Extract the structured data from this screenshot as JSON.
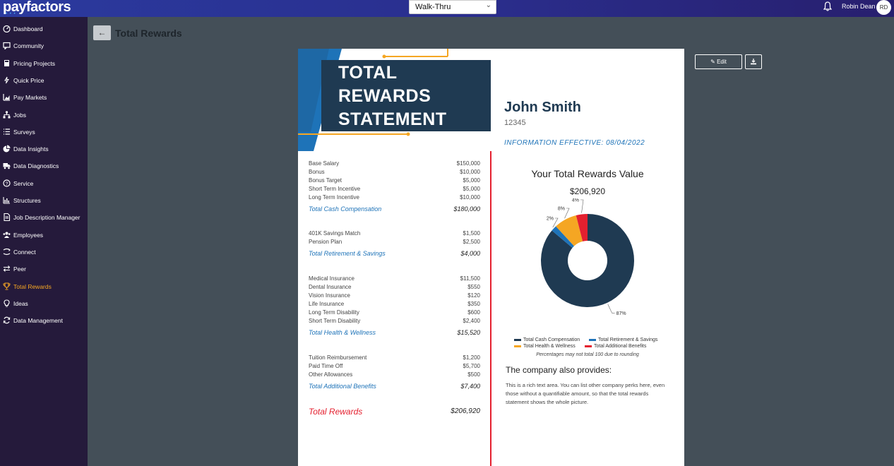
{
  "app": {
    "logo": "payfactors",
    "logo_dots": "• • •",
    "walkthru": "Walk-Thru",
    "user_name": "Robin Dean",
    "user_initials": "RD"
  },
  "sidebar": {
    "items": [
      {
        "label": "Dashboard",
        "icon": "dashboard-icon"
      },
      {
        "label": "Community",
        "icon": "chat-icon"
      },
      {
        "label": "Pricing Projects",
        "icon": "calculator-icon"
      },
      {
        "label": "Quick Price",
        "icon": "bolt-icon"
      },
      {
        "label": "Pay Markets",
        "icon": "bar-chart-icon"
      },
      {
        "label": "Jobs",
        "icon": "sitemap-icon"
      },
      {
        "label": "Surveys",
        "icon": "list-icon"
      },
      {
        "label": "Data Insights",
        "icon": "pie-chart-icon"
      },
      {
        "label": "Data Diagnostics",
        "icon": "truck-icon"
      },
      {
        "label": "Service",
        "icon": "help-circle-icon"
      },
      {
        "label": "Structures",
        "icon": "structure-chart-icon"
      },
      {
        "label": "Job Description Manager",
        "icon": "document-icon"
      },
      {
        "label": "Employees",
        "icon": "users-icon"
      },
      {
        "label": "Connect",
        "icon": "connect-icon"
      },
      {
        "label": "Peer",
        "icon": "exchange-icon"
      },
      {
        "label": "Total Rewards",
        "icon": "trophy-icon",
        "active": true
      },
      {
        "label": "Ideas",
        "icon": "lightbulb-icon"
      },
      {
        "label": "Data Management",
        "icon": "sync-icon"
      }
    ],
    "active_color": "#f5a623"
  },
  "page": {
    "back_label": "←",
    "title": "Total Rewards",
    "edit_label": "Edit"
  },
  "statement": {
    "hero_lines": [
      "TOTAL",
      "REWARDS",
      "STATEMENT"
    ],
    "sections": [
      {
        "rows": [
          {
            "label": "Base Salary",
            "value": "$150,000"
          },
          {
            "label": "Bonus",
            "value": "$10,000"
          },
          {
            "label": "Bonus Target",
            "value": "$5,000"
          },
          {
            "label": "Short Term Incentive",
            "value": "$5,000"
          },
          {
            "label": "Long Term Incentive",
            "value": "$10,000"
          }
        ],
        "total_label": "Total Cash Compensation",
        "total_value": "$180,000"
      },
      {
        "rows": [
          {
            "label": "401K Savings Match",
            "value": "$1,500"
          },
          {
            "label": "Pension Plan",
            "value": "$2,500"
          }
        ],
        "total_label": "Total Retirement & Savings",
        "total_value": "$4,000"
      },
      {
        "rows": [
          {
            "label": "Medical Insurance",
            "value": "$11,500"
          },
          {
            "label": "Dental Insurance",
            "value": "$550"
          },
          {
            "label": "Vision Insurance",
            "value": "$120"
          },
          {
            "label": "Life Insurance",
            "value": "$350"
          },
          {
            "label": "Long Term Disability",
            "value": "$600"
          },
          {
            "label": "Short Term Disability",
            "value": "$2,400"
          }
        ],
        "total_label": "Total Health & Wellness",
        "total_value": "$15,520"
      },
      {
        "rows": [
          {
            "label": "Tuition Reimbursement",
            "value": "$1,200"
          },
          {
            "label": "Paid Time Off",
            "value": "$5,700"
          },
          {
            "label": "Other Allowances",
            "value": "$500"
          }
        ],
        "total_label": "Total Additional Benefits",
        "total_value": "$7,400"
      }
    ],
    "grand_total_label": "Total Rewards",
    "grand_total_value": "$206,920",
    "employee_name": "John Smith",
    "employee_id": "12345",
    "effective": "INFORMATION EFFECTIVE: 08/04/2022",
    "value_title": "Your Total Rewards Value",
    "value_amount": "$206,920",
    "percent_note": "Percentages may not total 100 due to rounding",
    "also_title": "The company also provides:",
    "also_text": "This is a rich text area. You can list other company perks here, even those without a quantifiable amount, so that the total rewards statement shows the whole picture.",
    "colors": {
      "navy": "#1f3a52",
      "blue": "#1e73b8",
      "orange": "#f5a623",
      "red": "#e4202f"
    }
  },
  "chart_data": {
    "type": "pie",
    "donut": true,
    "categories": [
      "Total Cash Compensation",
      "Total Retirement & Savings",
      "Total Health & Wellness",
      "Total Additional Benefits"
    ],
    "values": [
      87,
      2,
      8,
      4
    ],
    "labels": [
      "87%",
      "2%",
      "8%",
      "4%"
    ],
    "colors": [
      "#1f3a52",
      "#1e73b8",
      "#f5a623",
      "#e4202f"
    ],
    "legend_position": "bottom"
  }
}
